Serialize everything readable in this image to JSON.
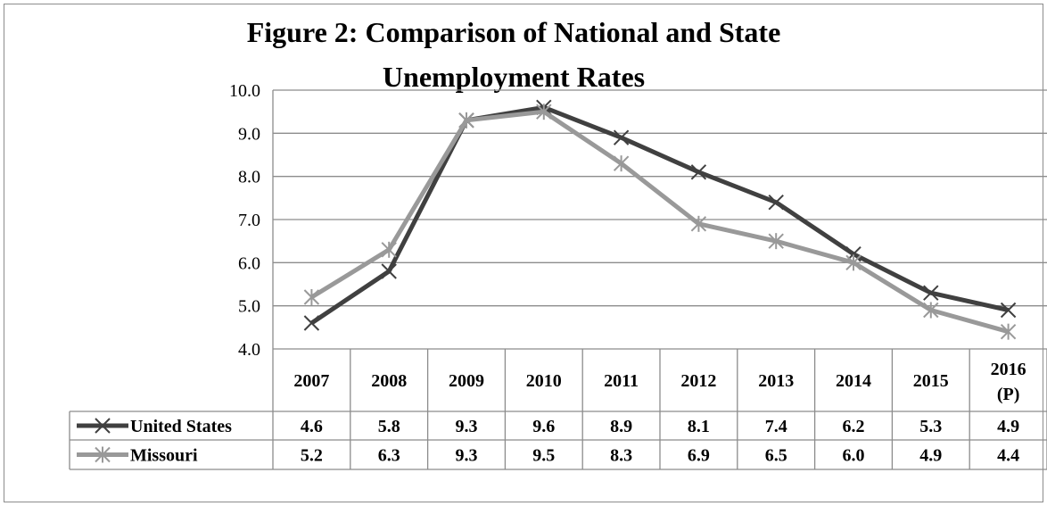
{
  "chart_data": {
    "type": "line",
    "title_lines": [
      "Figure 2: Comparison of National and State",
      "Unemployment Rates"
    ],
    "categories": [
      {
        "line1": "2007",
        "line2": ""
      },
      {
        "line1": "2008",
        "line2": ""
      },
      {
        "line1": "2009",
        "line2": ""
      },
      {
        "line1": "2010",
        "line2": ""
      },
      {
        "line1": "2011",
        "line2": ""
      },
      {
        "line1": "2012",
        "line2": ""
      },
      {
        "line1": "2013",
        "line2": ""
      },
      {
        "line1": "2014",
        "line2": ""
      },
      {
        "line1": "2015",
        "line2": ""
      },
      {
        "line1": "2016",
        "line2": "(P)"
      }
    ],
    "yticks": [
      "4.0",
      "5.0",
      "6.0",
      "7.0",
      "8.0",
      "9.0",
      "10.0"
    ],
    "ylim": [
      4.0,
      10.0
    ],
    "grid": true,
    "legend": "data-table-left",
    "series": [
      {
        "name": "United States",
        "values": [
          4.6,
          5.8,
          9.3,
          9.6,
          8.9,
          8.1,
          7.4,
          6.2,
          5.3,
          4.9
        ],
        "labels": [
          "4.6",
          "5.8",
          "9.3",
          "9.6",
          "8.9",
          "8.1",
          "7.4",
          "6.2",
          "5.3",
          "4.9"
        ],
        "color": "#404040",
        "marker": "x"
      },
      {
        "name": "Missouri",
        "values": [
          5.2,
          6.3,
          9.3,
          9.5,
          8.3,
          6.9,
          6.5,
          6.0,
          4.9,
          4.4
        ],
        "labels": [
          "5.2",
          "6.3",
          "9.3",
          "9.5",
          "8.3",
          "6.9",
          "6.5",
          "6.0",
          "4.9",
          "4.4"
        ],
        "color": "#999999",
        "marker": "star"
      }
    ]
  }
}
